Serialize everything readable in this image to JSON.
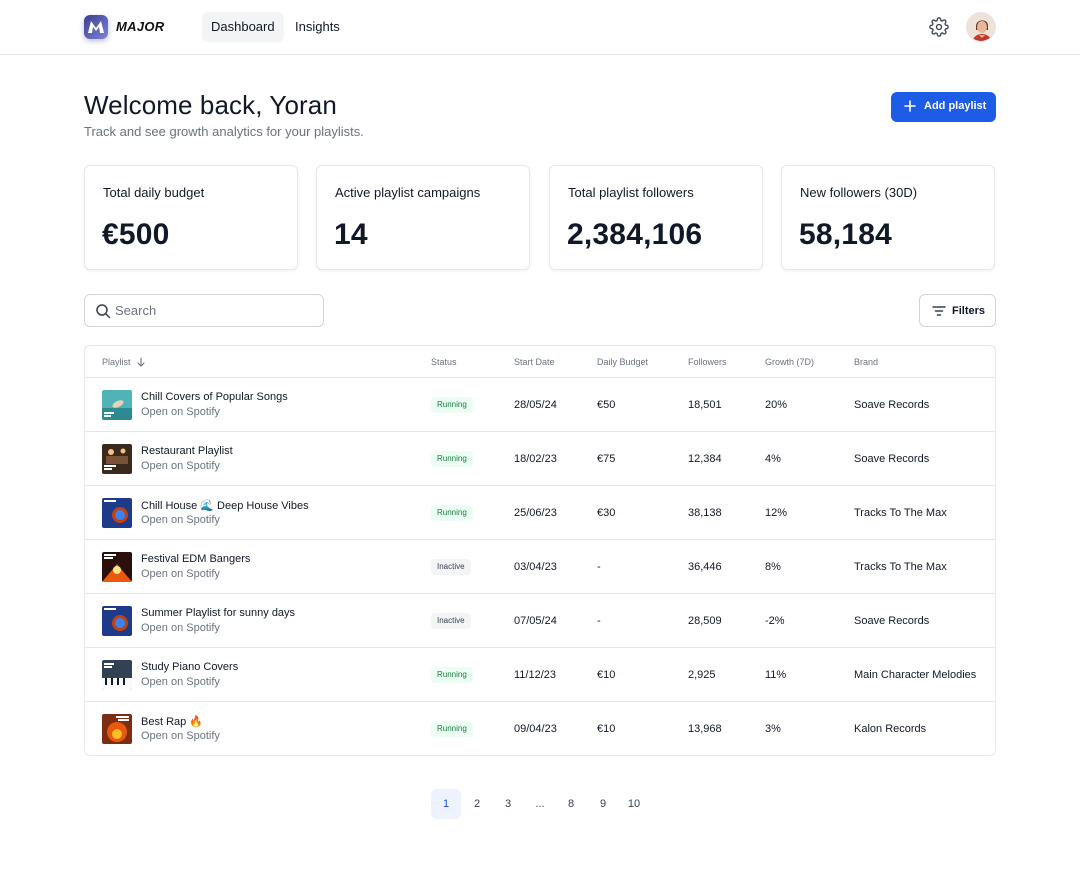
{
  "header": {
    "brand": "MAJOR",
    "nav": [
      {
        "label": "Dashboard",
        "active": true
      },
      {
        "label": "Insights",
        "active": false
      }
    ]
  },
  "welcome": {
    "title": "Welcome back, Yoran",
    "subtitle": "Track and see growth analytics for your playlists.",
    "add_button": "Add playlist"
  },
  "stats": [
    {
      "label": "Total daily budget",
      "value": "€500"
    },
    {
      "label": "Active playlist campaigns",
      "value": "14"
    },
    {
      "label": "Total playlist followers",
      "value": "2,384,106"
    },
    {
      "label": "New followers (30D)",
      "value": "58,184"
    }
  ],
  "search": {
    "placeholder": "Search"
  },
  "filters_label": "Filters",
  "table": {
    "columns": [
      "Playlist",
      "Status",
      "Start Date",
      "Daily Budget",
      "Followers",
      "Growth (7D)",
      "Brand"
    ],
    "rows": [
      {
        "name": "Chill Covers of Popular Songs",
        "link": "Open on Spotify",
        "status": "Running",
        "start": "28/05/24",
        "budget": "€50",
        "followers": "18,501",
        "growth": "20%",
        "brand": "Soave Records",
        "thumb": "teal"
      },
      {
        "name": "Restaurant Playlist",
        "link": "Open on Spotify",
        "status": "Running",
        "start": "18/02/23",
        "budget": "€75",
        "followers": "12,384",
        "growth": "4%",
        "brand": "Soave Records",
        "thumb": "amber"
      },
      {
        "name": "Chill House 🌊 Deep House Vibes",
        "link": "Open on Spotify",
        "status": "Running",
        "start": "25/06/23",
        "budget": "€30",
        "followers": "38,138",
        "growth": "12%",
        "brand": "Tracks To The Max",
        "thumb": "blue"
      },
      {
        "name": "Festival EDM Bangers",
        "link": "Open on Spotify",
        "status": "Inactive",
        "start": "03/04/23",
        "budget": "-",
        "followers": "36,446",
        "growth": "8%",
        "brand": "Tracks To The Max",
        "thumb": "red"
      },
      {
        "name": "Summer Playlist for sunny days",
        "link": "Open on Spotify",
        "status": "Inactive",
        "start": "07/05/24",
        "budget": "-",
        "followers": "28,509",
        "growth": "-2%",
        "brand": "Soave Records",
        "thumb": "blue"
      },
      {
        "name": "Study Piano Covers",
        "link": "Open on Spotify",
        "status": "Running",
        "start": "11/12/23",
        "budget": "€10",
        "followers": "2,925",
        "growth": "11%",
        "brand": "Main Character Melodies",
        "thumb": "slate"
      },
      {
        "name": "Best Rap 🔥",
        "link": "Open on Spotify",
        "status": "Running",
        "start": "09/04/23",
        "budget": "€10",
        "followers": "13,968",
        "growth": "3%",
        "brand": "Kalon Records",
        "thumb": "fire"
      }
    ]
  },
  "pagination": [
    "1",
    "2",
    "3",
    "...",
    "8",
    "9",
    "10"
  ],
  "colors": {
    "accent": "#1d5ce6",
    "running_bg": "#ecfdf3",
    "running_text": "#15803d",
    "inactive_bg": "#f3f4f6"
  }
}
